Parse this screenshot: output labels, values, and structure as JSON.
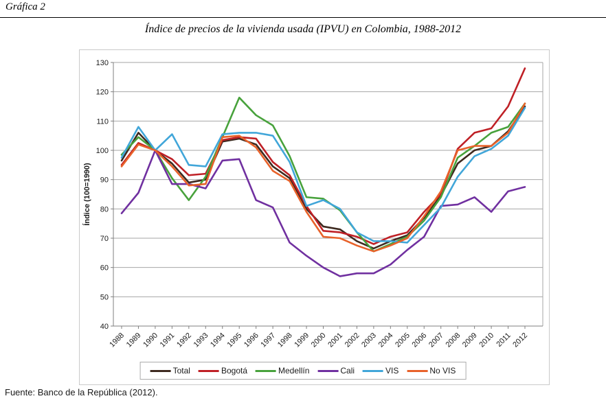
{
  "page": {
    "figure_label": "Gráfica 2",
    "source": "Fuente: Banco de la República (2012)."
  },
  "chart_data": {
    "type": "line",
    "title": "Índice de precios de la vivienda usada (IPVU) en Colombia, 1988-2012",
    "xlabel": "",
    "ylabel": "Índice (100=1990)",
    "ylim": [
      40,
      130
    ],
    "ytick_step": 10,
    "grid": true,
    "legend_position": "bottom",
    "categories": [
      1988,
      1989,
      1990,
      1991,
      1992,
      1993,
      1994,
      1995,
      1996,
      1997,
      1998,
      1999,
      2000,
      2001,
      2002,
      2003,
      2004,
      2005,
      2006,
      2007,
      2008,
      2009,
      2010,
      2011,
      2012
    ],
    "series": [
      {
        "name": "Total",
        "color": "#3e2a20",
        "values": [
          96.5,
          106,
          100,
          95.5,
          89,
          90,
          103,
          104,
          102,
          94.5,
          90.5,
          80,
          74,
          73,
          69,
          66.5,
          69,
          71,
          77,
          84.5,
          95.5,
          100,
          101.5,
          106.5,
          115
        ]
      },
      {
        "name": "Bogotá",
        "color": "#bf2026",
        "values": [
          95,
          102.5,
          100,
          97,
          91.5,
          92,
          103.5,
          104.5,
          104,
          96,
          91.5,
          81,
          72.5,
          72,
          70.5,
          68,
          70.5,
          72,
          79,
          85,
          100.5,
          106,
          107.5,
          115,
          128
        ]
      },
      {
        "name": "Medellín",
        "color": "#48a23c",
        "values": [
          98.5,
          104.5,
          100,
          90.5,
          83,
          91,
          104.5,
          118,
          112,
          108.5,
          98,
          84,
          83.5,
          79.5,
          72,
          65.5,
          68,
          70.5,
          76,
          84,
          97.5,
          101.5,
          106,
          108,
          116
        ]
      },
      {
        "name": "Cali",
        "color": "#7030a0",
        "values": [
          78.5,
          85.5,
          100,
          88.5,
          88.5,
          87,
          96.5,
          97,
          83,
          80.5,
          68.5,
          64,
          60,
          57,
          58,
          58,
          61,
          66,
          70.5,
          81,
          81.5,
          84,
          79,
          86,
          87.5
        ]
      },
      {
        "name": "VIS",
        "color": "#41a6d9",
        "values": [
          97.5,
          108,
          100,
          105.5,
          95,
          94.5,
          105.5,
          106,
          106,
          105,
          96,
          81,
          83,
          80,
          72,
          69,
          69,
          68.5,
          74.5,
          80.5,
          91,
          98,
          100.5,
          105,
          114.5
        ]
      },
      {
        "name": "No VIS",
        "color": "#e8622a",
        "values": [
          94.5,
          102,
          100,
          94.5,
          88,
          88.5,
          104.5,
          105,
          101,
          93,
          89.5,
          79,
          70.5,
          70,
          67.5,
          65.5,
          67.5,
          70,
          77.5,
          86,
          100,
          101.5,
          101.5,
          106,
          116
        ]
      }
    ]
  }
}
